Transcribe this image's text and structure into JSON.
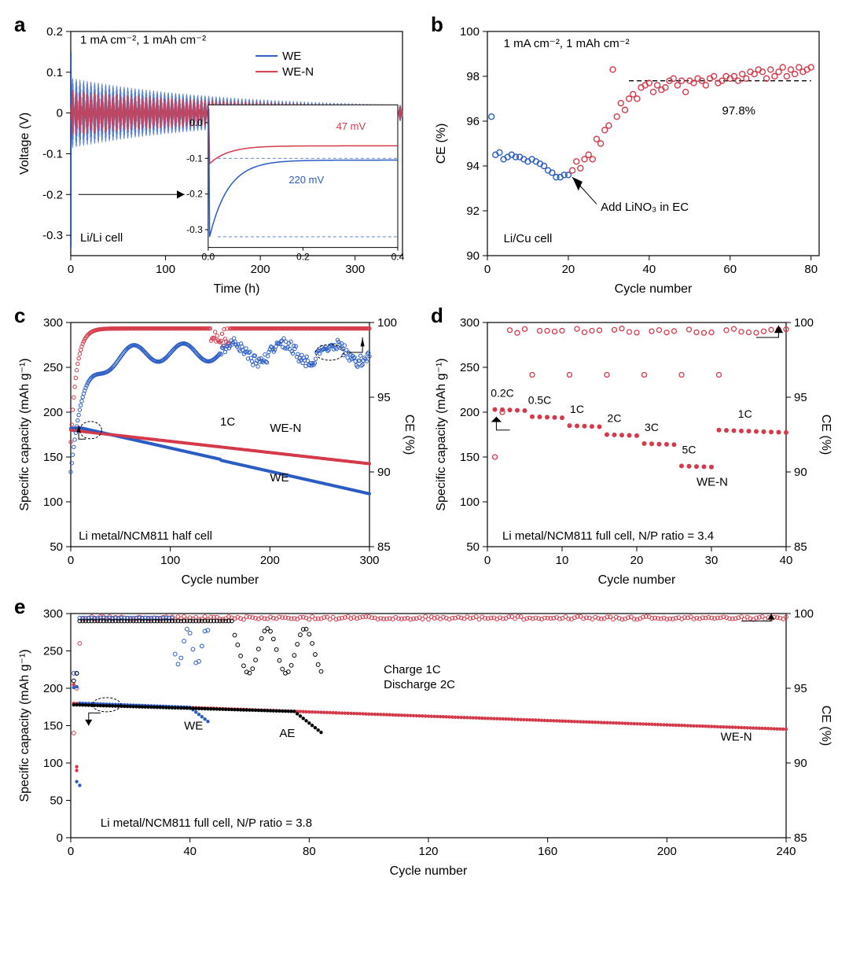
{
  "colors": {
    "we": "#2a5cc4",
    "wen": "#d43a4a",
    "ae": "#000000",
    "axis": "#000000",
    "bg": "#ffffff",
    "dash": "#333333"
  },
  "panels": {
    "a": {
      "label": "a",
      "type": "line",
      "xlim": [
        0,
        350
      ],
      "ylim": [
        -0.35,
        0.2
      ],
      "xticks": [
        0,
        100,
        200,
        300
      ],
      "yticks": [
        -0.3,
        -0.2,
        -0.1,
        0.0,
        0.1,
        0.2
      ],
      "xlabel": "Time (h)",
      "ylabel": "Voltage (V)",
      "condition": "1 mA cm⁻², 1 mAh cm⁻²",
      "cell_label": "Li/Li cell",
      "legend": [
        {
          "label": "WE",
          "color": "#2a5cc4"
        },
        {
          "label": "WE-N",
          "color": "#d43a4a"
        }
      ],
      "inset": {
        "xlim": [
          0,
          0.4
        ],
        "ylim": [
          -0.35,
          0.05
        ],
        "xticks": [
          0.0,
          0.2,
          0.4
        ],
        "yticks": [
          -0.3,
          -0.2,
          -0.1,
          0.0
        ],
        "wen_anno": "47 mV",
        "we_anno": "220 mV"
      }
    },
    "b": {
      "label": "b",
      "type": "scatter",
      "xlim": [
        0,
        82
      ],
      "ylim": [
        90,
        100
      ],
      "xticks": [
        0,
        20,
        40,
        60,
        80
      ],
      "yticks": [
        90,
        92,
        94,
        96,
        98,
        100
      ],
      "xlabel": "Cycle number",
      "ylabel": "CE (%)",
      "condition": "1 mA cm⁻², 1 mAh cm⁻²",
      "cell_label": "Li/Cu cell",
      "ref_line_y": 97.8,
      "ref_label": "97.8%",
      "anno": "Add LiNO₃ in EC",
      "phase1": {
        "color": "#2a5cc4",
        "start": 1,
        "end": 20,
        "vals": [
          96.2,
          94.5,
          94.6,
          94.3,
          94.4,
          94.5,
          94.4,
          94.4,
          94.3,
          94.2,
          94.3,
          94.2,
          94.1,
          94.0,
          93.8,
          93.7,
          93.5,
          93.5,
          93.6,
          93.6
        ]
      },
      "phase2": {
        "color": "#d43a4a",
        "start": 21,
        "end": 80,
        "vals": [
          93.8,
          94.2,
          93.9,
          94.3,
          94.5,
          94.3,
          95.2,
          95.0,
          95.6,
          95.8,
          98.3,
          96.2,
          96.8,
          96.5,
          97.0,
          97.2,
          97.0,
          97.5,
          97.6,
          97.7,
          97.3,
          97.6,
          97.4,
          97.5,
          97.8,
          97.9,
          97.6,
          97.8,
          97.3,
          97.8,
          97.7,
          97.9,
          97.8,
          97.6,
          97.9,
          98.0,
          97.7,
          97.8,
          98.0,
          97.9,
          98.0,
          97.8,
          98.1,
          97.9,
          98.2,
          98.1,
          98.3,
          98.2,
          97.9,
          98.3,
          98.0,
          98.2,
          98.4,
          98.0,
          98.3,
          98.1,
          98.4,
          98.2,
          98.3,
          98.4
        ]
      }
    },
    "c": {
      "label": "c",
      "type": "dual-axis-scatter",
      "xlim": [
        0,
        300
      ],
      "ylim_l": [
        50,
        300
      ],
      "ylim_r": [
        85,
        100
      ],
      "xticks": [
        0,
        100,
        200,
        300
      ],
      "yticks_l": [
        50,
        100,
        150,
        200,
        250,
        300
      ],
      "yticks_r": [
        85,
        90,
        95,
        100
      ],
      "xlabel": "Cycle number",
      "ylabel_l": "Specific capacity (mAh g⁻¹)",
      "ylabel_r": "CE (%)",
      "cell_label": "Li metal/NCM811 half cell",
      "rate_label": "1C",
      "series_labels": {
        "we": "WE",
        "wen": "WE-N"
      }
    },
    "d": {
      "label": "d",
      "type": "dual-axis-scatter",
      "xlim": [
        0,
        40
      ],
      "ylim_l": [
        50,
        300
      ],
      "ylim_r": [
        85,
        100
      ],
      "xticks": [
        0,
        10,
        20,
        30,
        40
      ],
      "yticks_l": [
        50,
        100,
        150,
        200,
        250,
        300
      ],
      "yticks_r": [
        85,
        90,
        95,
        100
      ],
      "xlabel": "Cycle number",
      "ylabel_l": "Specific capacity (mAh g⁻¹)",
      "ylabel_r": "CE (%)",
      "cell_label": "Li metal/NCM811 full cell, N/P ratio = 3.4",
      "rates": [
        "0.2C",
        "0.5C",
        "1C",
        "2C",
        "3C",
        "5C",
        "1C"
      ],
      "rate_caps": [
        203,
        195,
        185,
        175,
        165,
        140,
        180
      ],
      "series_label": "WE-N"
    },
    "e": {
      "label": "e",
      "type": "dual-axis-scatter",
      "xlim": [
        0,
        240
      ],
      "ylim_l": [
        0,
        300
      ],
      "ylim_r": [
        85,
        100
      ],
      "xticks": [
        0,
        40,
        80,
        120,
        160,
        200,
        240
      ],
      "yticks_l": [
        0,
        50,
        100,
        150,
        200,
        250,
        300
      ],
      "yticks_r": [
        85,
        90,
        95,
        100
      ],
      "xlabel": "Cycle number",
      "ylabel_l": "Specific capacity (mAh g⁻¹)",
      "ylabel_r": "CE (%)",
      "cell_label": "Li metal/NCM811 full cell, N/P ratio = 3.8",
      "rate_label_1": "Charge 1C",
      "rate_label_2": "Discharge 2C",
      "series_labels": {
        "we": "WE",
        "ae": "AE",
        "wen": "WE-N"
      }
    }
  }
}
